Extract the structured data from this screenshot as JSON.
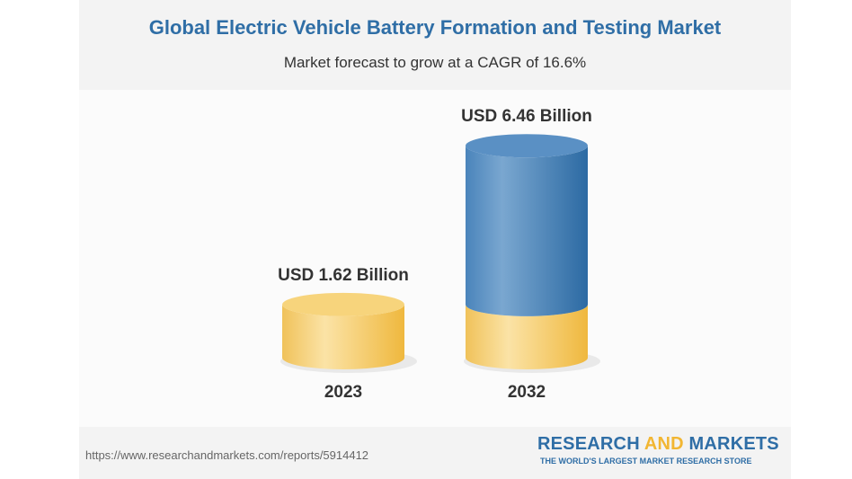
{
  "chart_data": {
    "type": "bar",
    "title": "Global Electric Vehicle Battery Formation and Testing Market",
    "subtitle": "Market forecast to grow at a CAGR of 16.6%",
    "categories": [
      "2023",
      "2032"
    ],
    "values": [
      1.62,
      6.46
    ],
    "data_labels": [
      "USD 1.62 Billion",
      "USD 6.46 Billion"
    ],
    "unit": "USD Billion",
    "style": "3d-cylinder",
    "colors": {
      "base": "#f2c45a",
      "growth": "#3b78b0"
    },
    "grid": false
  },
  "footer": {
    "url": "https://www.researchandmarkets.com/reports/5914412",
    "logo_part1": "RESEARCH ",
    "logo_part2": "AND",
    "logo_part3": " MARKETS",
    "logo_tagline": "THE WORLD'S LARGEST MARKET RESEARCH STORE"
  }
}
